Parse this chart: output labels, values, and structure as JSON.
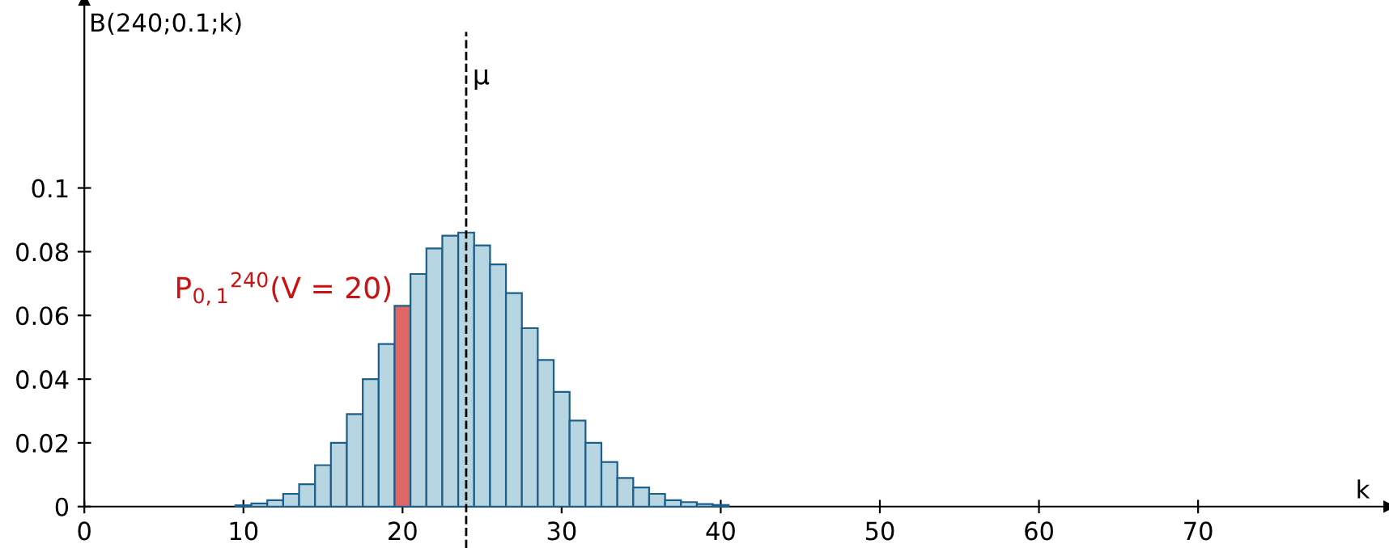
{
  "chart_data": {
    "type": "histogram",
    "ylabel": "B(240;0.1;k)",
    "xlabel": "k",
    "bins": [
      9.5,
      10.5,
      11.5,
      12.5,
      13.5,
      14.5,
      15.5,
      16.5,
      17.5,
      18.5,
      19.5,
      20.5,
      21.5,
      22.5,
      23.5,
      24.5,
      25.5,
      26.5,
      27.5,
      28.5,
      29.5,
      30.5,
      31.5,
      32.5,
      33.5,
      34.5,
      35.5,
      36.5,
      37.5,
      38.5,
      39.5,
      40.5
    ],
    "values": [
      0.0004,
      0.001,
      0.002,
      0.004,
      0.007,
      0.013,
      0.02,
      0.029,
      0.04,
      0.051,
      0.063,
      0.073,
      0.081,
      0.085,
      0.086,
      0.082,
      0.076,
      0.067,
      0.056,
      0.046,
      0.036,
      0.027,
      0.02,
      0.014,
      0.009,
      0.006,
      0.004,
      0.002,
      0.0014,
      0.0008,
      0.0005
    ],
    "colors": [
      "#b8d6e2",
      "#b8d6e2",
      "#b8d6e2",
      "#b8d6e2",
      "#b8d6e2",
      "#b8d6e2",
      "#b8d6e2",
      "#b8d6e2",
      "#b8d6e2",
      "#b8d6e2",
      "#e06666",
      "#b8d6e2",
      "#b8d6e2",
      "#b8d6e2",
      "#b8d6e2",
      "#b8d6e2",
      "#b8d6e2",
      "#b8d6e2",
      "#b8d6e2",
      "#b8d6e2",
      "#b8d6e2",
      "#b8d6e2",
      "#b8d6e2",
      "#b8d6e2",
      "#b8d6e2",
      "#b8d6e2",
      "#b8d6e2",
      "#b8d6e2",
      "#b8d6e2",
      "#b8d6e2",
      "#b8d6e2"
    ],
    "xlim": [
      -5.3,
      82
    ],
    "ylim": [
      -0.013,
      0.159
    ],
    "xticks": [
      0,
      10,
      20,
      30,
      40,
      50,
      60,
      70
    ],
    "yticks": [
      0,
      0.02,
      0.04,
      0.06,
      0.08,
      0.1
    ],
    "ref_lines": [
      {
        "axis": "x",
        "value": 24,
        "label": "μ",
        "color": "#000000",
        "line_style": "dashed"
      }
    ],
    "annotations": [
      {
        "text": "P$_{0,1}$$^{240}$(V = 20)",
        "x": 20,
        "y": 0.063
      }
    ],
    "legend": false
  }
}
